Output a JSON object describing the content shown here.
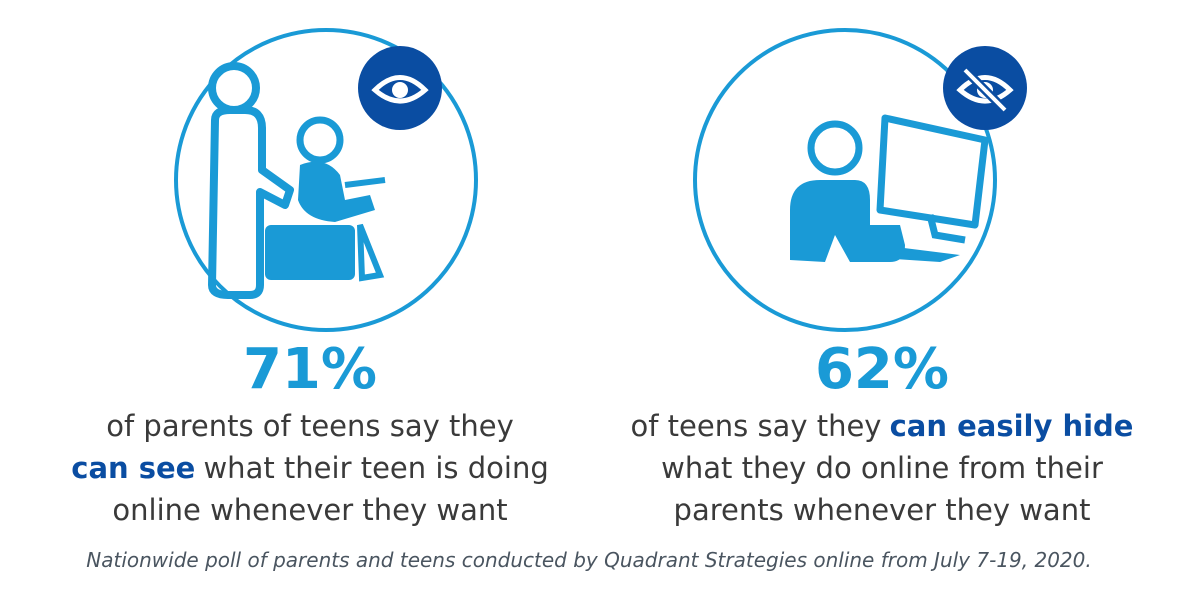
{
  "stats": [
    {
      "figure": "71%",
      "lines": [
        [
          {
            "text": "of parents of teens say they"
          }
        ],
        [
          {
            "text": "can see",
            "bold": true
          },
          {
            "text": "what their teen is doing"
          }
        ],
        [
          {
            "text": "online whenever they want"
          }
        ]
      ]
    },
    {
      "figure": "62%",
      "lines": [
        [
          {
            "text": "of teens say they"
          },
          {
            "text": "can easily hide",
            "bold": true
          }
        ],
        [
          {
            "text": "what they do online from their"
          }
        ],
        [
          {
            "text": "parents whenever they want"
          }
        ]
      ]
    }
  ],
  "footnote": "Nationwide poll of parents and teens conducted by Quadrant Strategies online from July 7-19, 2020."
}
